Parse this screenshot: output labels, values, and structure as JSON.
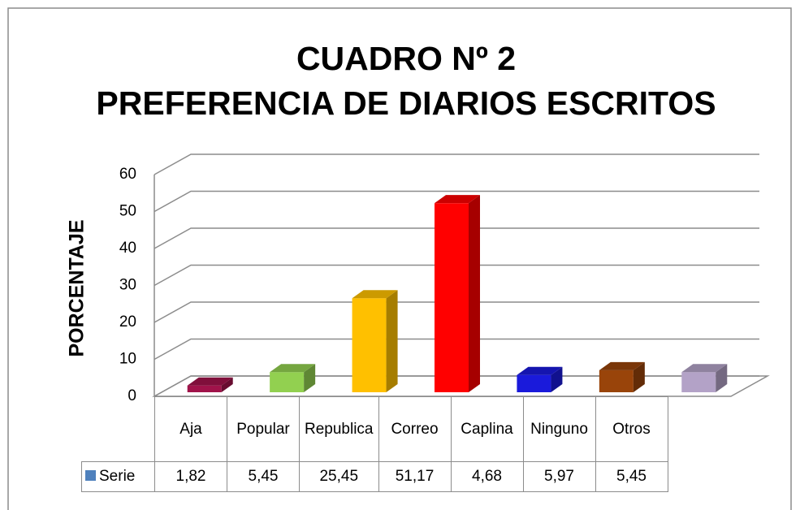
{
  "chart_data": {
    "type": "bar3d",
    "title": "CUADRO Nº 2",
    "subtitle": "PREFERENCIA DE DIARIOS ESCRITOS",
    "y_label": "PORCENTAJE",
    "categories": [
      "Aja",
      "Popular",
      "Republica",
      "Correo",
      "Caplina",
      "Ninguno",
      "Otros"
    ],
    "series": [
      {
        "name": "Serie",
        "color": "#4f81bd",
        "values": [
          1.82,
          5.45,
          25.45,
          51.17,
          4.68,
          5.97,
          5.45
        ],
        "value_labels": [
          "1,82",
          "5,45",
          "25,45",
          "51,17",
          "4,68",
          "5,97",
          "5,45"
        ]
      }
    ],
    "colors": [
      "#a0134a",
      "#92d050",
      "#ffc000",
      "#ff0000",
      "#1a1adb",
      "#99440a",
      "#b3a2c7"
    ],
    "ylim": [
      0,
      60
    ],
    "yticks": [
      0,
      10,
      20,
      30,
      40,
      50,
      60
    ],
    "grid": true,
    "data_table": true
  }
}
